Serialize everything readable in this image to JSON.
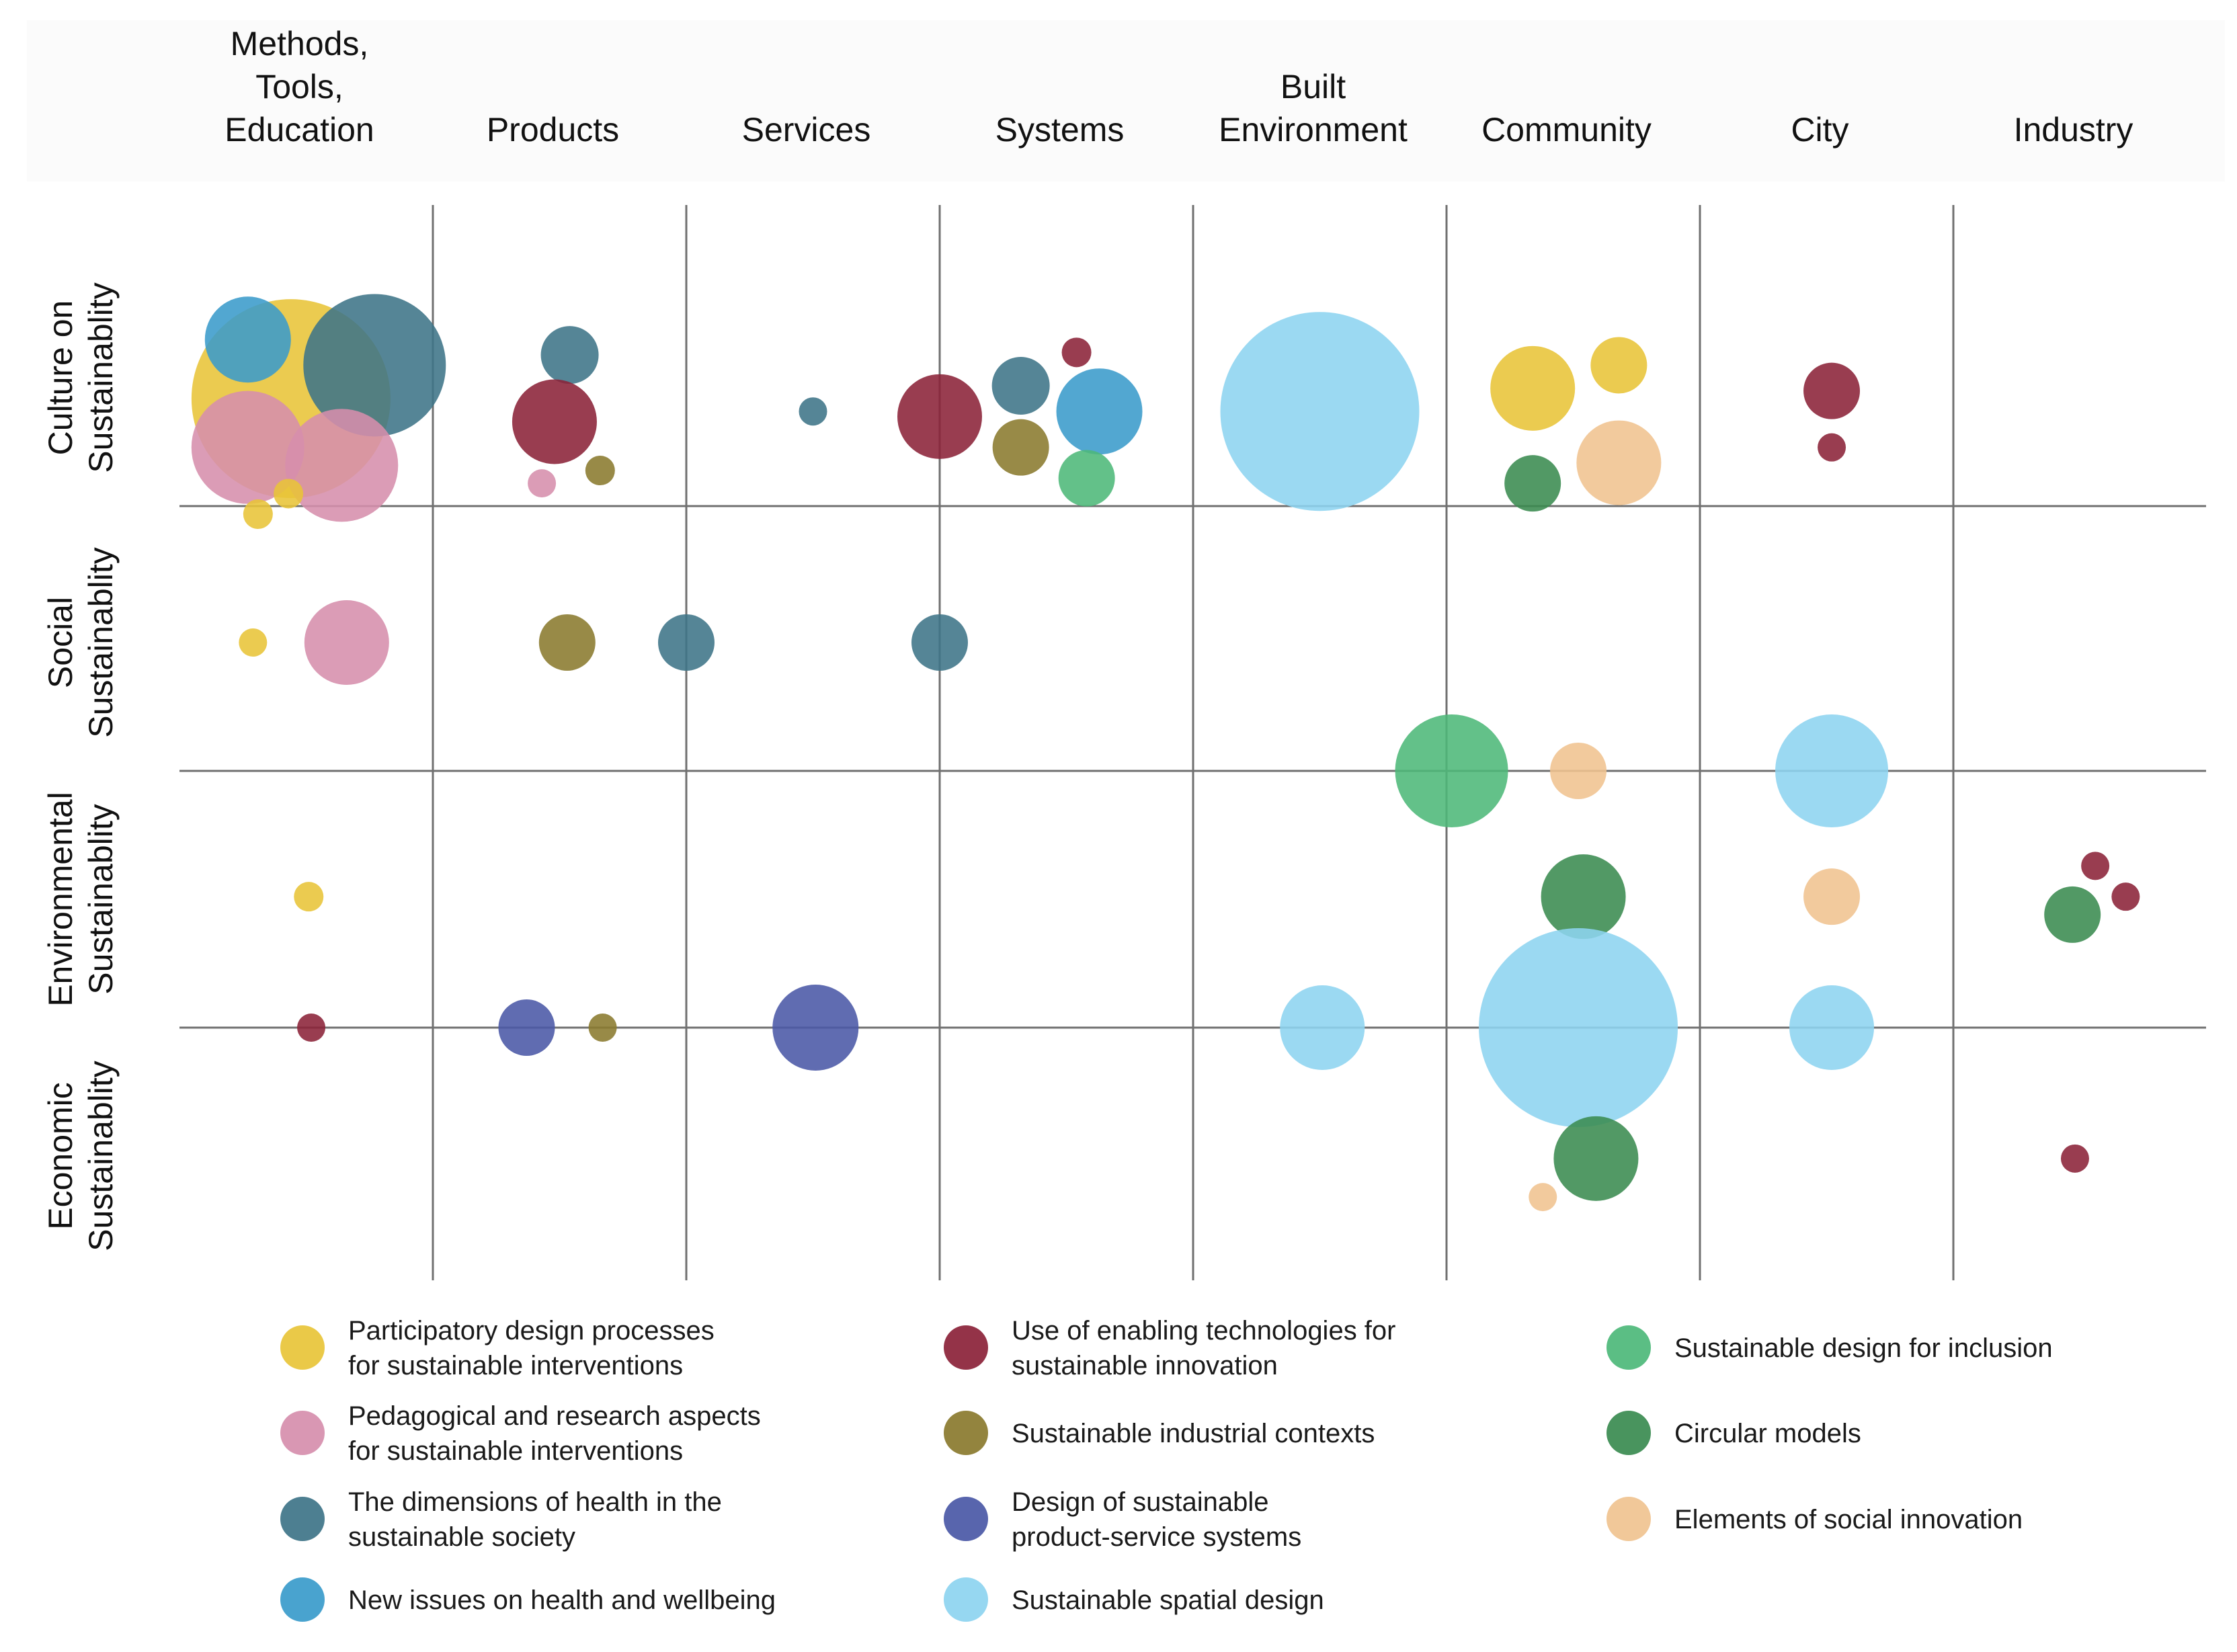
{
  "chart_data": {
    "type": "bubble-matrix",
    "title": "",
    "columns": [
      [
        "Methods,",
        "Tools,",
        "Education"
      ],
      [
        "Products"
      ],
      [
        "Services"
      ],
      [
        "Systems"
      ],
      [
        "Built",
        "Environment"
      ],
      [
        "Community"
      ],
      [
        "City"
      ],
      [
        "Industry"
      ]
    ],
    "rows": [
      [
        "Culture on",
        "Sustainablity"
      ],
      [
        "Social",
        "Sustainablity"
      ],
      [
        "Environmental",
        "Sustainablity"
      ],
      [
        "Economic",
        "Sustainablity"
      ]
    ],
    "x_axis": {
      "range": [
        0,
        8
      ],
      "meaning": "column index (0 = Methods, Tools, Education)"
    },
    "y_axis": {
      "range": [
        0,
        4
      ],
      "meaning": "row index (0 = top of Culture on Sustainablity)"
    },
    "categories": [
      {
        "id": "participatory",
        "label": [
          "Participatory design processes",
          "for sustainable interventions"
        ],
        "color": "#E8C438"
      },
      {
        "id": "pedagogical",
        "label": [
          "Pedagogical and research aspects",
          "for sustainable interventions"
        ],
        "color": "#D68EAC"
      },
      {
        "id": "health-dimensions",
        "label": [
          "The dimensions of health in the",
          "sustainable society"
        ],
        "color": "#3E7488"
      },
      {
        "id": "health-issues",
        "label": [
          "New issues on health and wellbeing"
        ],
        "color": "#3A9BCB"
      },
      {
        "id": "enabling-tech",
        "label": [
          "Use of enabling technologies for",
          "sustainable innovation"
        ],
        "color": "#8B2238"
      },
      {
        "id": "industrial",
        "label": [
          "Sustainable industrial contexts"
        ],
        "color": "#8A7A2E"
      },
      {
        "id": "pss",
        "label": [
          "Design of sustainable",
          "product-service systems"
        ],
        "color": "#4A58A6"
      },
      {
        "id": "spatial",
        "label": [
          "Sustainable spatial design"
        ],
        "color": "#8DD4F0"
      },
      {
        "id": "inclusion",
        "label": [
          "Sustainable design for inclusion"
        ],
        "color": "#4DB879"
      },
      {
        "id": "circular",
        "label": [
          "Circular models"
        ],
        "color": "#3A8B50"
      },
      {
        "id": "social-innovation",
        "label": [
          "Elements of social innovation"
        ],
        "color": "#F0C390"
      }
    ],
    "bubbles": [
      {
        "cat": "participatory",
        "x": 0.44,
        "y": 0.55,
        "size": 148
      },
      {
        "cat": "health-dimensions",
        "x": 0.77,
        "y": 0.42,
        "size": 106
      },
      {
        "cat": "health-issues",
        "x": 0.27,
        "y": 0.32,
        "size": 64
      },
      {
        "cat": "pedagogical",
        "x": 0.27,
        "y": 0.74,
        "size": 84
      },
      {
        "cat": "pedagogical",
        "x": 0.64,
        "y": 0.81,
        "size": 84
      },
      {
        "cat": "participatory",
        "x": 0.31,
        "y": 1.0,
        "size": 22
      },
      {
        "cat": "participatory",
        "x": 0.43,
        "y": 0.92,
        "size": 22
      },
      {
        "cat": "health-dimensions",
        "x": 1.54,
        "y": 0.38,
        "size": 43
      },
      {
        "cat": "enabling-tech",
        "x": 1.48,
        "y": 0.64,
        "size": 63
      },
      {
        "cat": "industrial",
        "x": 1.66,
        "y": 0.83,
        "size": 22
      },
      {
        "cat": "pedagogical",
        "x": 1.43,
        "y": 0.88,
        "size": 21
      },
      {
        "cat": "health-dimensions",
        "x": 2.5,
        "y": 0.6,
        "size": 21
      },
      {
        "cat": "enabling-tech",
        "x": 3.0,
        "y": 0.62,
        "size": 63
      },
      {
        "cat": "health-dimensions",
        "x": 3.32,
        "y": 0.5,
        "size": 43
      },
      {
        "cat": "enabling-tech",
        "x": 3.54,
        "y": 0.37,
        "size": 22
      },
      {
        "cat": "health-issues",
        "x": 3.63,
        "y": 0.6,
        "size": 64
      },
      {
        "cat": "industrial",
        "x": 3.32,
        "y": 0.74,
        "size": 42
      },
      {
        "cat": "inclusion",
        "x": 3.58,
        "y": 0.86,
        "size": 42
      },
      {
        "cat": "spatial",
        "x": 4.5,
        "y": 0.6,
        "size": 148
      },
      {
        "cat": "participatory",
        "x": 5.34,
        "y": 0.51,
        "size": 63
      },
      {
        "cat": "participatory",
        "x": 5.68,
        "y": 0.42,
        "size": 42
      },
      {
        "cat": "social-innovation",
        "x": 5.68,
        "y": 0.8,
        "size": 63
      },
      {
        "cat": "circular",
        "x": 5.34,
        "y": 0.88,
        "size": 42
      },
      {
        "cat": "enabling-tech",
        "x": 6.52,
        "y": 0.52,
        "size": 42
      },
      {
        "cat": "enabling-tech",
        "x": 6.52,
        "y": 0.74,
        "size": 21
      },
      {
        "cat": "participatory",
        "x": 0.29,
        "y": 1.5,
        "size": 21
      },
      {
        "cat": "pedagogical",
        "x": 0.66,
        "y": 1.5,
        "size": 63
      },
      {
        "cat": "industrial",
        "x": 1.53,
        "y": 1.5,
        "size": 42
      },
      {
        "cat": "health-dimensions",
        "x": 2.0,
        "y": 1.5,
        "size": 42
      },
      {
        "cat": "health-dimensions",
        "x": 3.0,
        "y": 1.5,
        "size": 42
      },
      {
        "cat": "inclusion",
        "x": 5.02,
        "y": 2.0,
        "size": 84
      },
      {
        "cat": "social-innovation",
        "x": 5.52,
        "y": 2.0,
        "size": 42
      },
      {
        "cat": "spatial",
        "x": 6.52,
        "y": 2.0,
        "size": 84
      },
      {
        "cat": "participatory",
        "x": 0.51,
        "y": 2.49,
        "size": 22
      },
      {
        "cat": "circular",
        "x": 5.54,
        "y": 2.49,
        "size": 63
      },
      {
        "cat": "social-innovation",
        "x": 6.52,
        "y": 2.49,
        "size": 42
      },
      {
        "cat": "enabling-tech",
        "x": 7.56,
        "y": 2.37,
        "size": 21
      },
      {
        "cat": "enabling-tech",
        "x": 7.68,
        "y": 2.49,
        "size": 21
      },
      {
        "cat": "circular",
        "x": 7.47,
        "y": 2.56,
        "size": 42
      },
      {
        "cat": "enabling-tech",
        "x": 0.52,
        "y": 3.0,
        "size": 21
      },
      {
        "cat": "pss",
        "x": 1.37,
        "y": 3.0,
        "size": 42
      },
      {
        "cat": "industrial",
        "x": 1.67,
        "y": 3.0,
        "size": 21
      },
      {
        "cat": "pss",
        "x": 2.51,
        "y": 3.0,
        "size": 64
      },
      {
        "cat": "spatial",
        "x": 4.51,
        "y": 3.0,
        "size": 63
      },
      {
        "cat": "spatial",
        "x": 5.52,
        "y": 3.0,
        "size": 148
      },
      {
        "cat": "spatial",
        "x": 6.52,
        "y": 3.0,
        "size": 63
      },
      {
        "cat": "circular",
        "x": 5.59,
        "y": 3.51,
        "size": 63
      },
      {
        "cat": "social-innovation",
        "x": 5.38,
        "y": 3.66,
        "size": 21
      },
      {
        "cat": "enabling-tech",
        "x": 7.48,
        "y": 3.51,
        "size": 21
      }
    ]
  }
}
